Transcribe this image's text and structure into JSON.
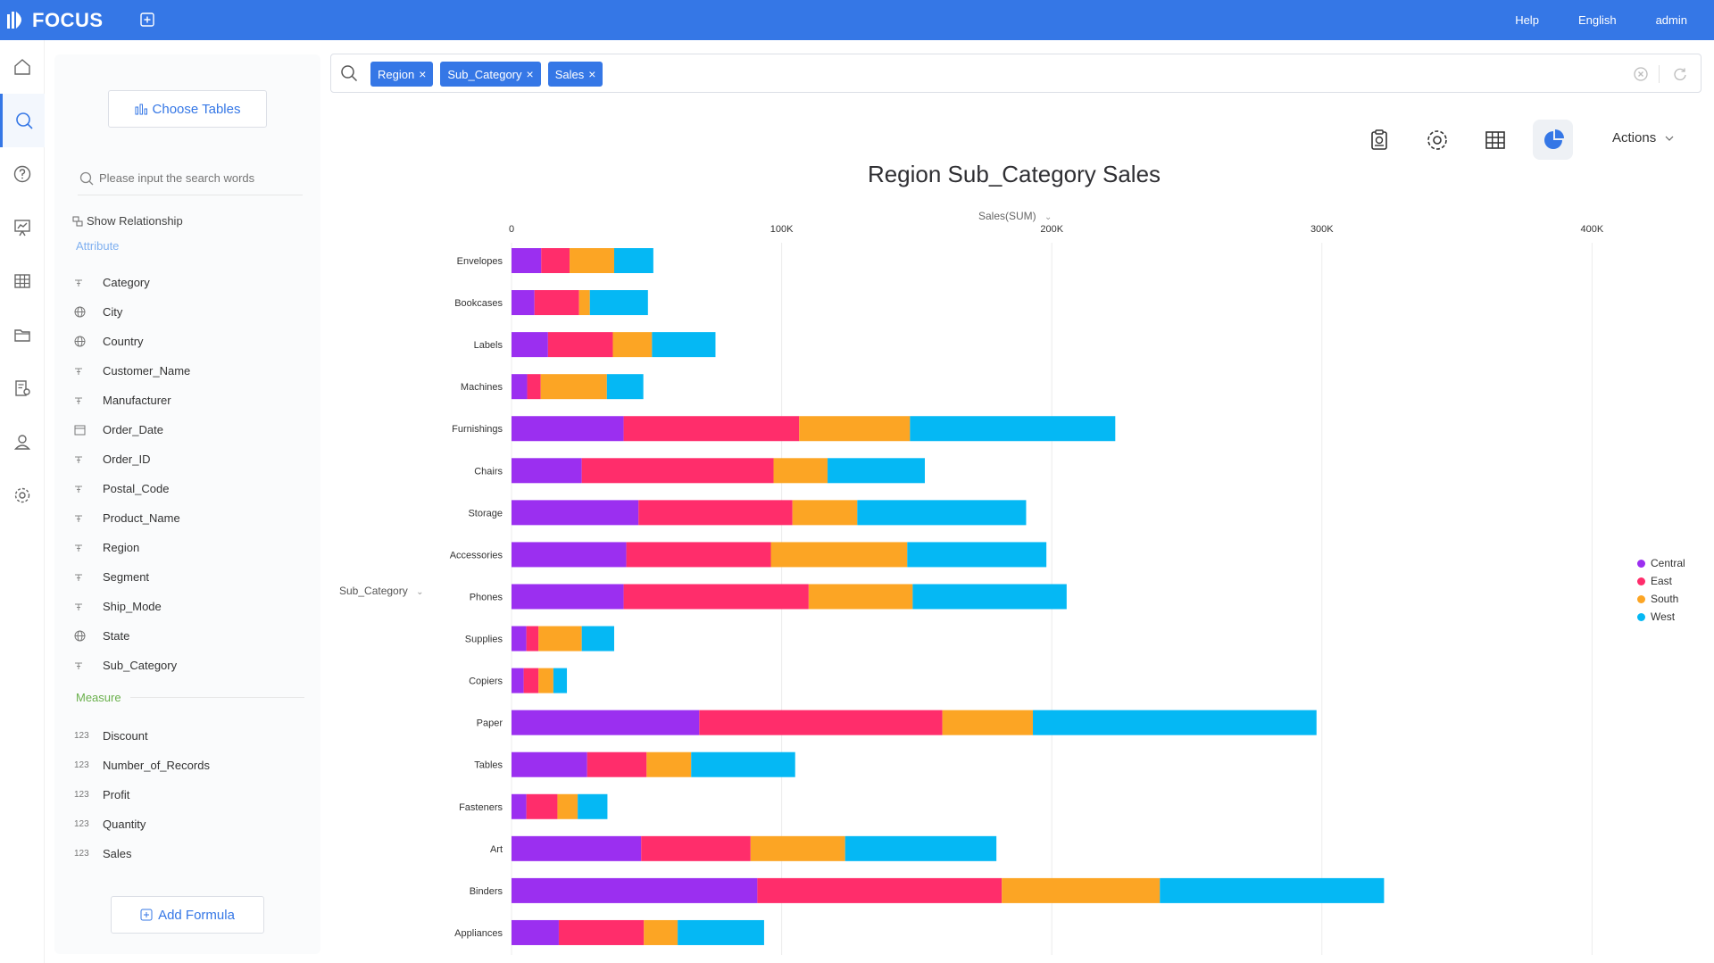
{
  "app": {
    "logo_text": "FOCUS"
  },
  "topnav": {
    "help": "Help",
    "language": "English",
    "user": "admin"
  },
  "left_panel": {
    "choose_tables": "Choose Tables",
    "search_placeholder": "Please input the search words",
    "show_relationship": "Show Relationship",
    "attribute_heading": "Attribute",
    "attributes": [
      {
        "label": "Category",
        "icon": "text-type-icon"
      },
      {
        "label": "City",
        "icon": "globe-icon"
      },
      {
        "label": "Country",
        "icon": "globe-icon"
      },
      {
        "label": "Customer_Name",
        "icon": "text-type-icon"
      },
      {
        "label": "Manufacturer",
        "icon": "text-type-icon"
      },
      {
        "label": "Order_Date",
        "icon": "calendar-icon"
      },
      {
        "label": "Order_ID",
        "icon": "text-type-icon"
      },
      {
        "label": "Postal_Code",
        "icon": "text-type-icon"
      },
      {
        "label": "Product_Name",
        "icon": "text-type-icon"
      },
      {
        "label": "Region",
        "icon": "text-type-icon"
      },
      {
        "label": "Segment",
        "icon": "text-type-icon"
      },
      {
        "label": "Ship_Mode",
        "icon": "text-type-icon"
      },
      {
        "label": "State",
        "icon": "globe-icon"
      },
      {
        "label": "Sub_Category",
        "icon": "text-type-icon"
      }
    ],
    "measure_heading": "Measure",
    "measures": [
      {
        "label": "Discount",
        "icon_text": "123"
      },
      {
        "label": "Number_of_Records",
        "icon_text": "123"
      },
      {
        "label": "Profit",
        "icon_text": "123"
      },
      {
        "label": "Quantity",
        "icon_text": "123"
      },
      {
        "label": "Sales",
        "icon_text": "123"
      }
    ],
    "add_formula": "Add Formula"
  },
  "search": {
    "tokens": [
      "Region",
      "Sub_Category",
      "Sales"
    ]
  },
  "toolbar": {
    "actions_label": "Actions"
  },
  "colors": {
    "accent": "#3577e6",
    "central": "#9b2ff0",
    "east": "#ff2d6b",
    "south": "#fca524",
    "west": "#05b8f4"
  },
  "chart_data": {
    "type": "bar",
    "orientation": "horizontal",
    "stacked": true,
    "title": "Region Sub_Category Sales",
    "xlabel": "Sales(SUM)",
    "ylabel": "Sub_Category",
    "xlim": [
      0,
      430000
    ],
    "xticks": [
      {
        "value": 0,
        "label": "0"
      },
      {
        "value": 100000,
        "label": "100K"
      },
      {
        "value": 200000,
        "label": "200K"
      },
      {
        "value": 300000,
        "label": "300K"
      },
      {
        "value": 400000,
        "label": "400K"
      }
    ],
    "grid": true,
    "legend_position": "right",
    "categories": [
      "Envelopes",
      "Bookcases",
      "Labels",
      "Machines",
      "Furnishings",
      "Chairs",
      "Storage",
      "Accessories",
      "Phones",
      "Supplies",
      "Copiers",
      "Paper",
      "Tables",
      "Fasteners",
      "Art",
      "Binders",
      "Appliances"
    ],
    "series": [
      {
        "name": "Central",
        "values": [
          11000,
          8500,
          13500,
          5800,
          41500,
          26000,
          47000,
          42500,
          41500,
          5500,
          4500,
          69500,
          28000,
          5500,
          48000,
          91000,
          17500
        ]
      },
      {
        "name": "East",
        "values": [
          10500,
          16500,
          24000,
          5000,
          65000,
          71000,
          57000,
          53500,
          68500,
          4500,
          5500,
          90000,
          22000,
          11500,
          40500,
          90500,
          31500
        ]
      },
      {
        "name": "South",
        "values": [
          16500,
          4000,
          14500,
          24500,
          41000,
          20000,
          24000,
          50500,
          38500,
          16000,
          5500,
          33500,
          16500,
          7500,
          35000,
          58500,
          12500
        ]
      },
      {
        "name": "West",
        "values": [
          14500,
          21500,
          23500,
          13500,
          76000,
          36000,
          62500,
          51500,
          57000,
          12000,
          5000,
          105000,
          38500,
          11000,
          56000,
          83000,
          32000
        ]
      }
    ]
  }
}
